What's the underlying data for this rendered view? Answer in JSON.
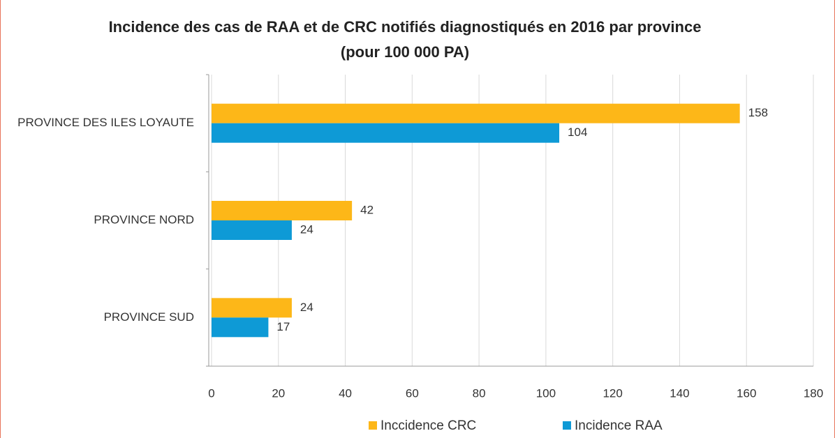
{
  "chart_data": {
    "type": "hbar",
    "title": "Incidence des cas de RAA et de CRC notifiés diagnostiqués en 2016 par province",
    "subtitle": "(pour 100 000 PA)",
    "categories": [
      "PROVINCE DES ILES LOYAUTE",
      "PROVINCE NORD",
      "PROVINCE SUD"
    ],
    "series": [
      {
        "name": "Inccidence CRC",
        "color": "#fdb718",
        "values": [
          158,
          42,
          24
        ]
      },
      {
        "name": "Incidence RAA",
        "color": "#0e9ad6",
        "values": [
          104,
          24,
          17
        ]
      }
    ],
    "xlim": [
      0,
      180
    ],
    "xticks": [
      0,
      20,
      40,
      60,
      80,
      100,
      120,
      140,
      160,
      180
    ],
    "grid": true,
    "legend": "bottom"
  }
}
